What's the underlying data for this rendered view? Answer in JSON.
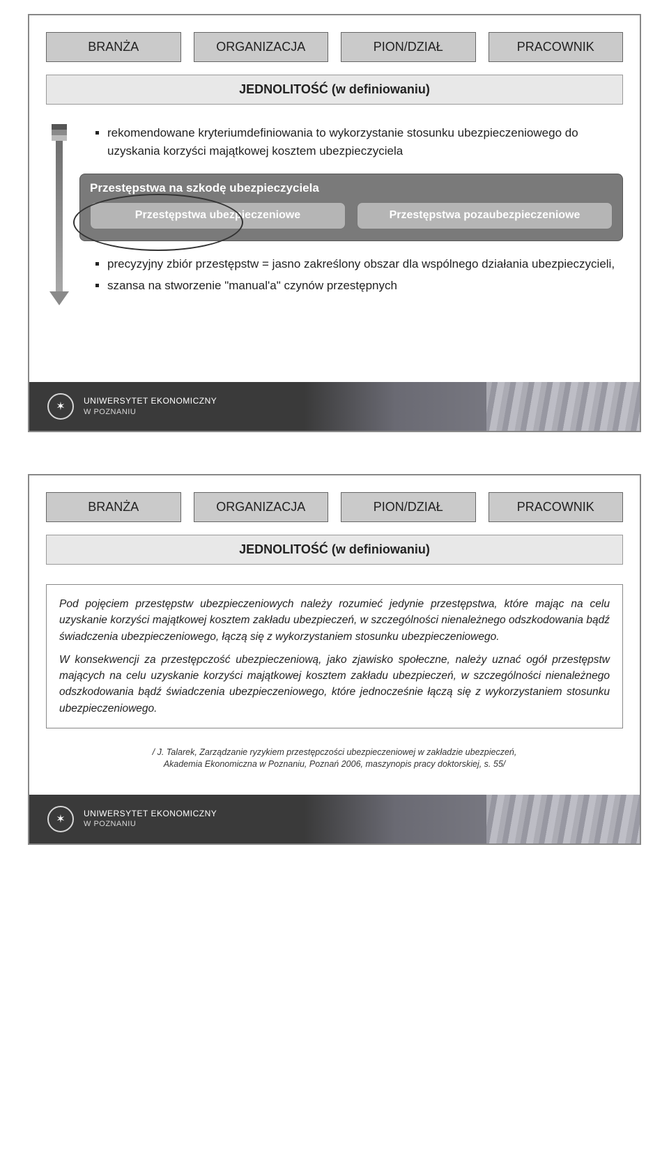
{
  "slide1": {
    "tabs": [
      "BRANŻA",
      "ORGANIZACJA",
      "PION/DZIAŁ",
      "PRACOWNIK"
    ],
    "subtitle": "JEDNOLITOŚĆ (w definiowaniu)",
    "bullet1": "rekomendowane kryteriumdefiniowania to wykorzystanie stosunku ubezpieczeniowego do uzyskania korzyści majątkowej kosztem ubezpieczyciela",
    "outerBoxTitle": "Przestępstwa na szkodę ubezpieczyciela",
    "innerBoxLeft": "Przestępstwa ubezpieczeniowe",
    "innerBoxRight": "Przestępstwa pozaubezpieczeniowe",
    "bullet2": "precyzyjny zbiór przestępstw = jasno zakreślony obszar dla wspólnego działania ubezpieczycieli,",
    "bullet3": "szansa na stworzenie \"manual'a\" czynów przestępnych"
  },
  "slide2": {
    "tabs": [
      "BRANŻA",
      "ORGANIZACJA",
      "PION/DZIAŁ",
      "PRACOWNIK"
    ],
    "subtitle": "JEDNOLITOŚĆ (w definiowaniu)",
    "def_para1": "Pod pojęciem przestępstw ubezpieczeniowych należy rozumieć jedynie przestępstwa, które mając na celu uzyskanie korzyści majątkowej kosztem zakładu ubezpieczeń, w szczególności nienależnego odszkodowania bądź świadczenia ubezpieczeniowego, łączą się z wykorzystaniem stosunku ubezpieczeniowego.",
    "def_para2": "W konsekwencji za przestępczość ubezpieczeniową, jako zjawisko społeczne, należy uznać ogół przestępstw mających na celu uzyskanie korzyści majątkowej kosztem zakładu ubezpieczeń, w szczególności nienależnego odszkodowania bądź świadczenia ubezpieczeniowego, które jednocześnie łączą się z wykorzystaniem stosunku ubezpieczeniowego.",
    "citation_line1": "/ J. Talarek, Zarządzanie ryzykiem przestępczości ubezpieczeniowej w zakładzie ubezpieczeń,",
    "citation_line2": "Akademia Ekonomiczna w Poznaniu, Poznań 2006, maszynopis pracy doktorskiej, s. 55/"
  },
  "footer": {
    "line1": "UNIWERSYTET EKONOMICZNY",
    "line2": "W POZNANIU"
  },
  "colors": {
    "tab_bg": "#cacaca",
    "subtitle_bg": "#e8e8e8",
    "outer_box_bg": "#7a7a7a",
    "inner_box_bg": "#b5b5b5",
    "footer_dark": "#3a3a3a",
    "text": "#222222"
  }
}
